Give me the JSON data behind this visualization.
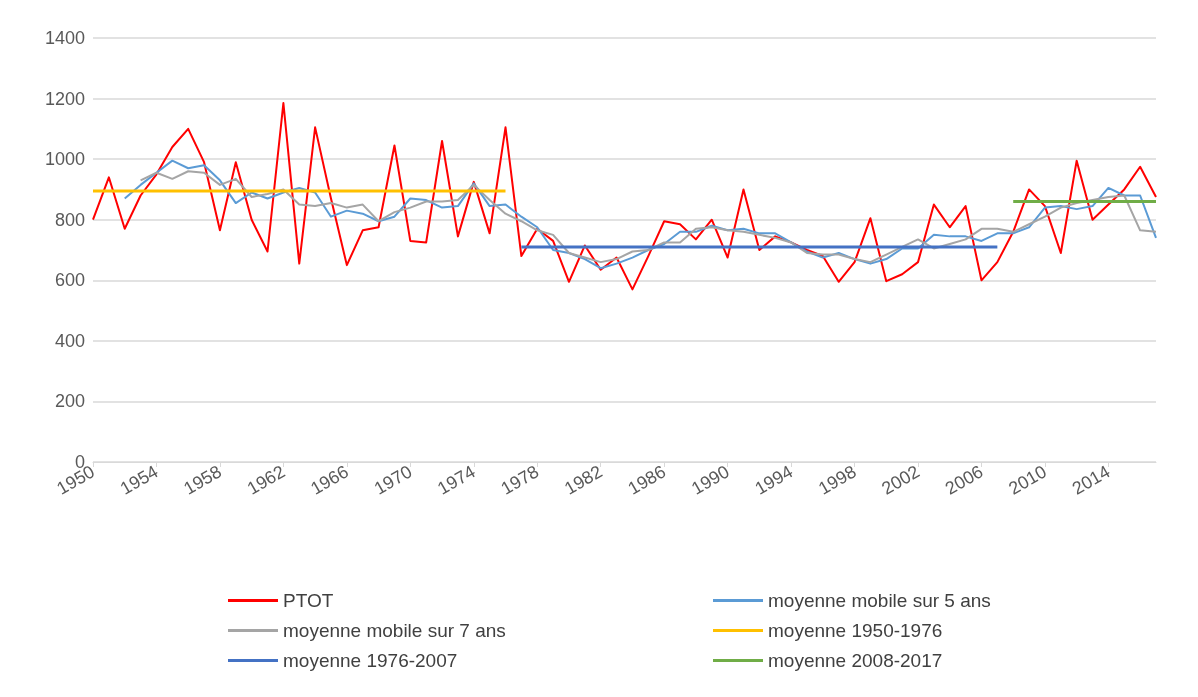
{
  "chart_data": {
    "type": "line",
    "x": [
      1950,
      1951,
      1952,
      1953,
      1954,
      1955,
      1956,
      1957,
      1958,
      1959,
      1960,
      1961,
      1962,
      1963,
      1964,
      1965,
      1966,
      1967,
      1968,
      1969,
      1970,
      1971,
      1972,
      1973,
      1974,
      1975,
      1976,
      1977,
      1978,
      1979,
      1980,
      1981,
      1982,
      1983,
      1984,
      1985,
      1986,
      1987,
      1988,
      1989,
      1990,
      1991,
      1992,
      1993,
      1994,
      1995,
      1996,
      1997,
      1998,
      1999,
      2000,
      2001,
      2002,
      2003,
      2004,
      2005,
      2006,
      2007,
      2008,
      2009,
      2010,
      2011,
      2012,
      2013,
      2014,
      2015,
      2016,
      2017
    ],
    "series": [
      {
        "name": "PTOT",
        "color": "#ff0000",
        "values": [
          800,
          940,
          770,
          880,
          950,
          1040,
          1100,
          990,
          765,
          990,
          800,
          695,
          1185,
          655,
          1105,
          870,
          650,
          765,
          775,
          1045,
          730,
          725,
          1060,
          745,
          925,
          755,
          1105,
          680,
          770,
          730,
          595,
          715,
          635,
          675,
          570,
          680,
          795,
          785,
          735,
          800,
          675,
          900,
          700,
          745,
          725,
          700,
          680,
          595,
          660,
          805,
          597,
          620,
          660,
          850,
          775,
          845,
          600,
          660,
          760,
          900,
          845,
          690,
          995,
          800,
          850,
          900,
          975,
          875
        ]
      },
      {
        "name": "moyenne mobile sur 5 ans",
        "color": "#5b9bd5",
        "values": [
          null,
          null,
          870,
          915,
          955,
          995,
          970,
          980,
          930,
          855,
          890,
          870,
          890,
          905,
          890,
          810,
          830,
          820,
          795,
          810,
          870,
          865,
          840,
          845,
          920,
          845,
          850,
          810,
          775,
          700,
          690,
          670,
          640,
          655,
          675,
          700,
          720,
          760,
          760,
          780,
          765,
          770,
          755,
          755,
          725,
          695,
          675,
          690,
          670,
          655,
          670,
          705,
          705,
          750,
          745,
          745,
          730,
          755,
          755,
          775,
          840,
          845,
          835,
          845,
          905,
          880,
          880,
          740
        ]
      },
      {
        "name": "moyenne mobile sur 7 ans",
        "color": "#a5a5a5",
        "values": [
          null,
          null,
          null,
          930,
          955,
          935,
          960,
          955,
          915,
          935,
          875,
          885,
          900,
          850,
          845,
          855,
          840,
          850,
          795,
          825,
          840,
          860,
          860,
          865,
          915,
          865,
          820,
          795,
          765,
          750,
          690,
          675,
          660,
          670,
          695,
          700,
          725,
          725,
          770,
          775,
          765,
          760,
          750,
          740,
          725,
          690,
          685,
          685,
          670,
          660,
          685,
          710,
          735,
          705,
          720,
          735,
          770,
          770,
          760,
          785,
          810,
          840,
          855,
          865,
          875,
          880,
          765,
          760
        ]
      },
      {
        "name": "moyenne 1950-1976",
        "color": "#ffc000",
        "x": [
          1950,
          1976
        ],
        "values": [
          895,
          895
        ]
      },
      {
        "name": "moyenne 1976-2007",
        "color": "#4472c4",
        "x": [
          1977,
          2007
        ],
        "values": [
          710,
          710
        ]
      },
      {
        "name": "moyenne 2008-2017",
        "color": "#70ad47",
        "x": [
          2008,
          2017
        ],
        "values": [
          860,
          860
        ]
      }
    ],
    "xlim": [
      1950,
      2017
    ],
    "xticks": [
      1950,
      1954,
      1958,
      1962,
      1966,
      1970,
      1974,
      1978,
      1982,
      1986,
      1990,
      1994,
      1998,
      2002,
      2006,
      2010,
      2014
    ],
    "ylim": [
      0,
      1400
    ],
    "yticks": [
      0,
      200,
      400,
      600,
      800,
      1000,
      1200,
      1400
    ],
    "grid": "y",
    "legend": "bottom",
    "marker": "none",
    "line_style": "solid"
  }
}
